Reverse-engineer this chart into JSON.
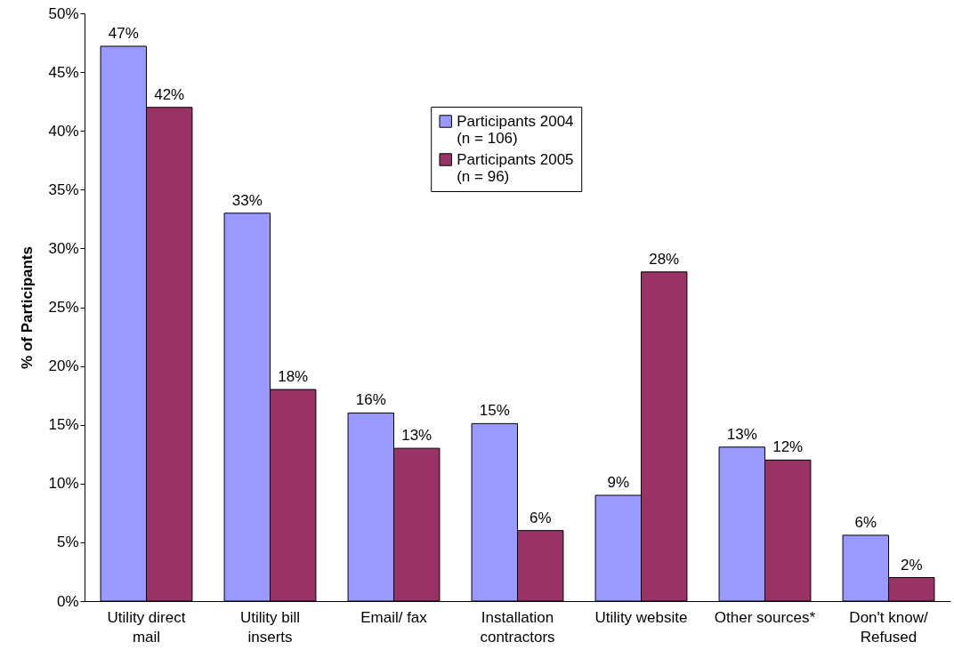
{
  "chart_data": {
    "type": "bar",
    "ylabel": "% of Participants",
    "categories": [
      "Utility direct mail",
      "Utility bill inserts",
      "Email/ fax",
      "Installation contractors",
      "Utility website",
      "Other sources*",
      "Don't know/ Refused"
    ],
    "series": [
      {
        "name": "Participants 2004 (n = 106)",
        "color": "#9999ff",
        "values": [
          47.2,
          33,
          16,
          15.1,
          9,
          13.1,
          5.6
        ],
        "value_labels": [
          "47%",
          "33%",
          "16%",
          "15%",
          "9%",
          "13%",
          "6%"
        ]
      },
      {
        "name": "Participants 2005 (n = 96)",
        "color": "#993366",
        "values": [
          42,
          18,
          13,
          6,
          28,
          12,
          2
        ],
        "value_labels": [
          "42%",
          "18%",
          "13%",
          "6%",
          "28%",
          "12%",
          "2%"
        ]
      }
    ],
    "ylim": [
      0,
      50
    ],
    "yticks": [
      {
        "value": 0,
        "label": "0%"
      },
      {
        "value": 5,
        "label": "5%"
      },
      {
        "value": 10,
        "label": "10%"
      },
      {
        "value": 15,
        "label": "15%"
      },
      {
        "value": 20,
        "label": "20%"
      },
      {
        "value": 25,
        "label": "25%"
      },
      {
        "value": 30,
        "label": "30%"
      },
      {
        "value": 35,
        "label": "35%"
      },
      {
        "value": 40,
        "label": "40%"
      },
      {
        "value": 45,
        "label": "45%"
      },
      {
        "value": 50,
        "label": "50%"
      }
    ],
    "grid": false,
    "legend": "top"
  }
}
